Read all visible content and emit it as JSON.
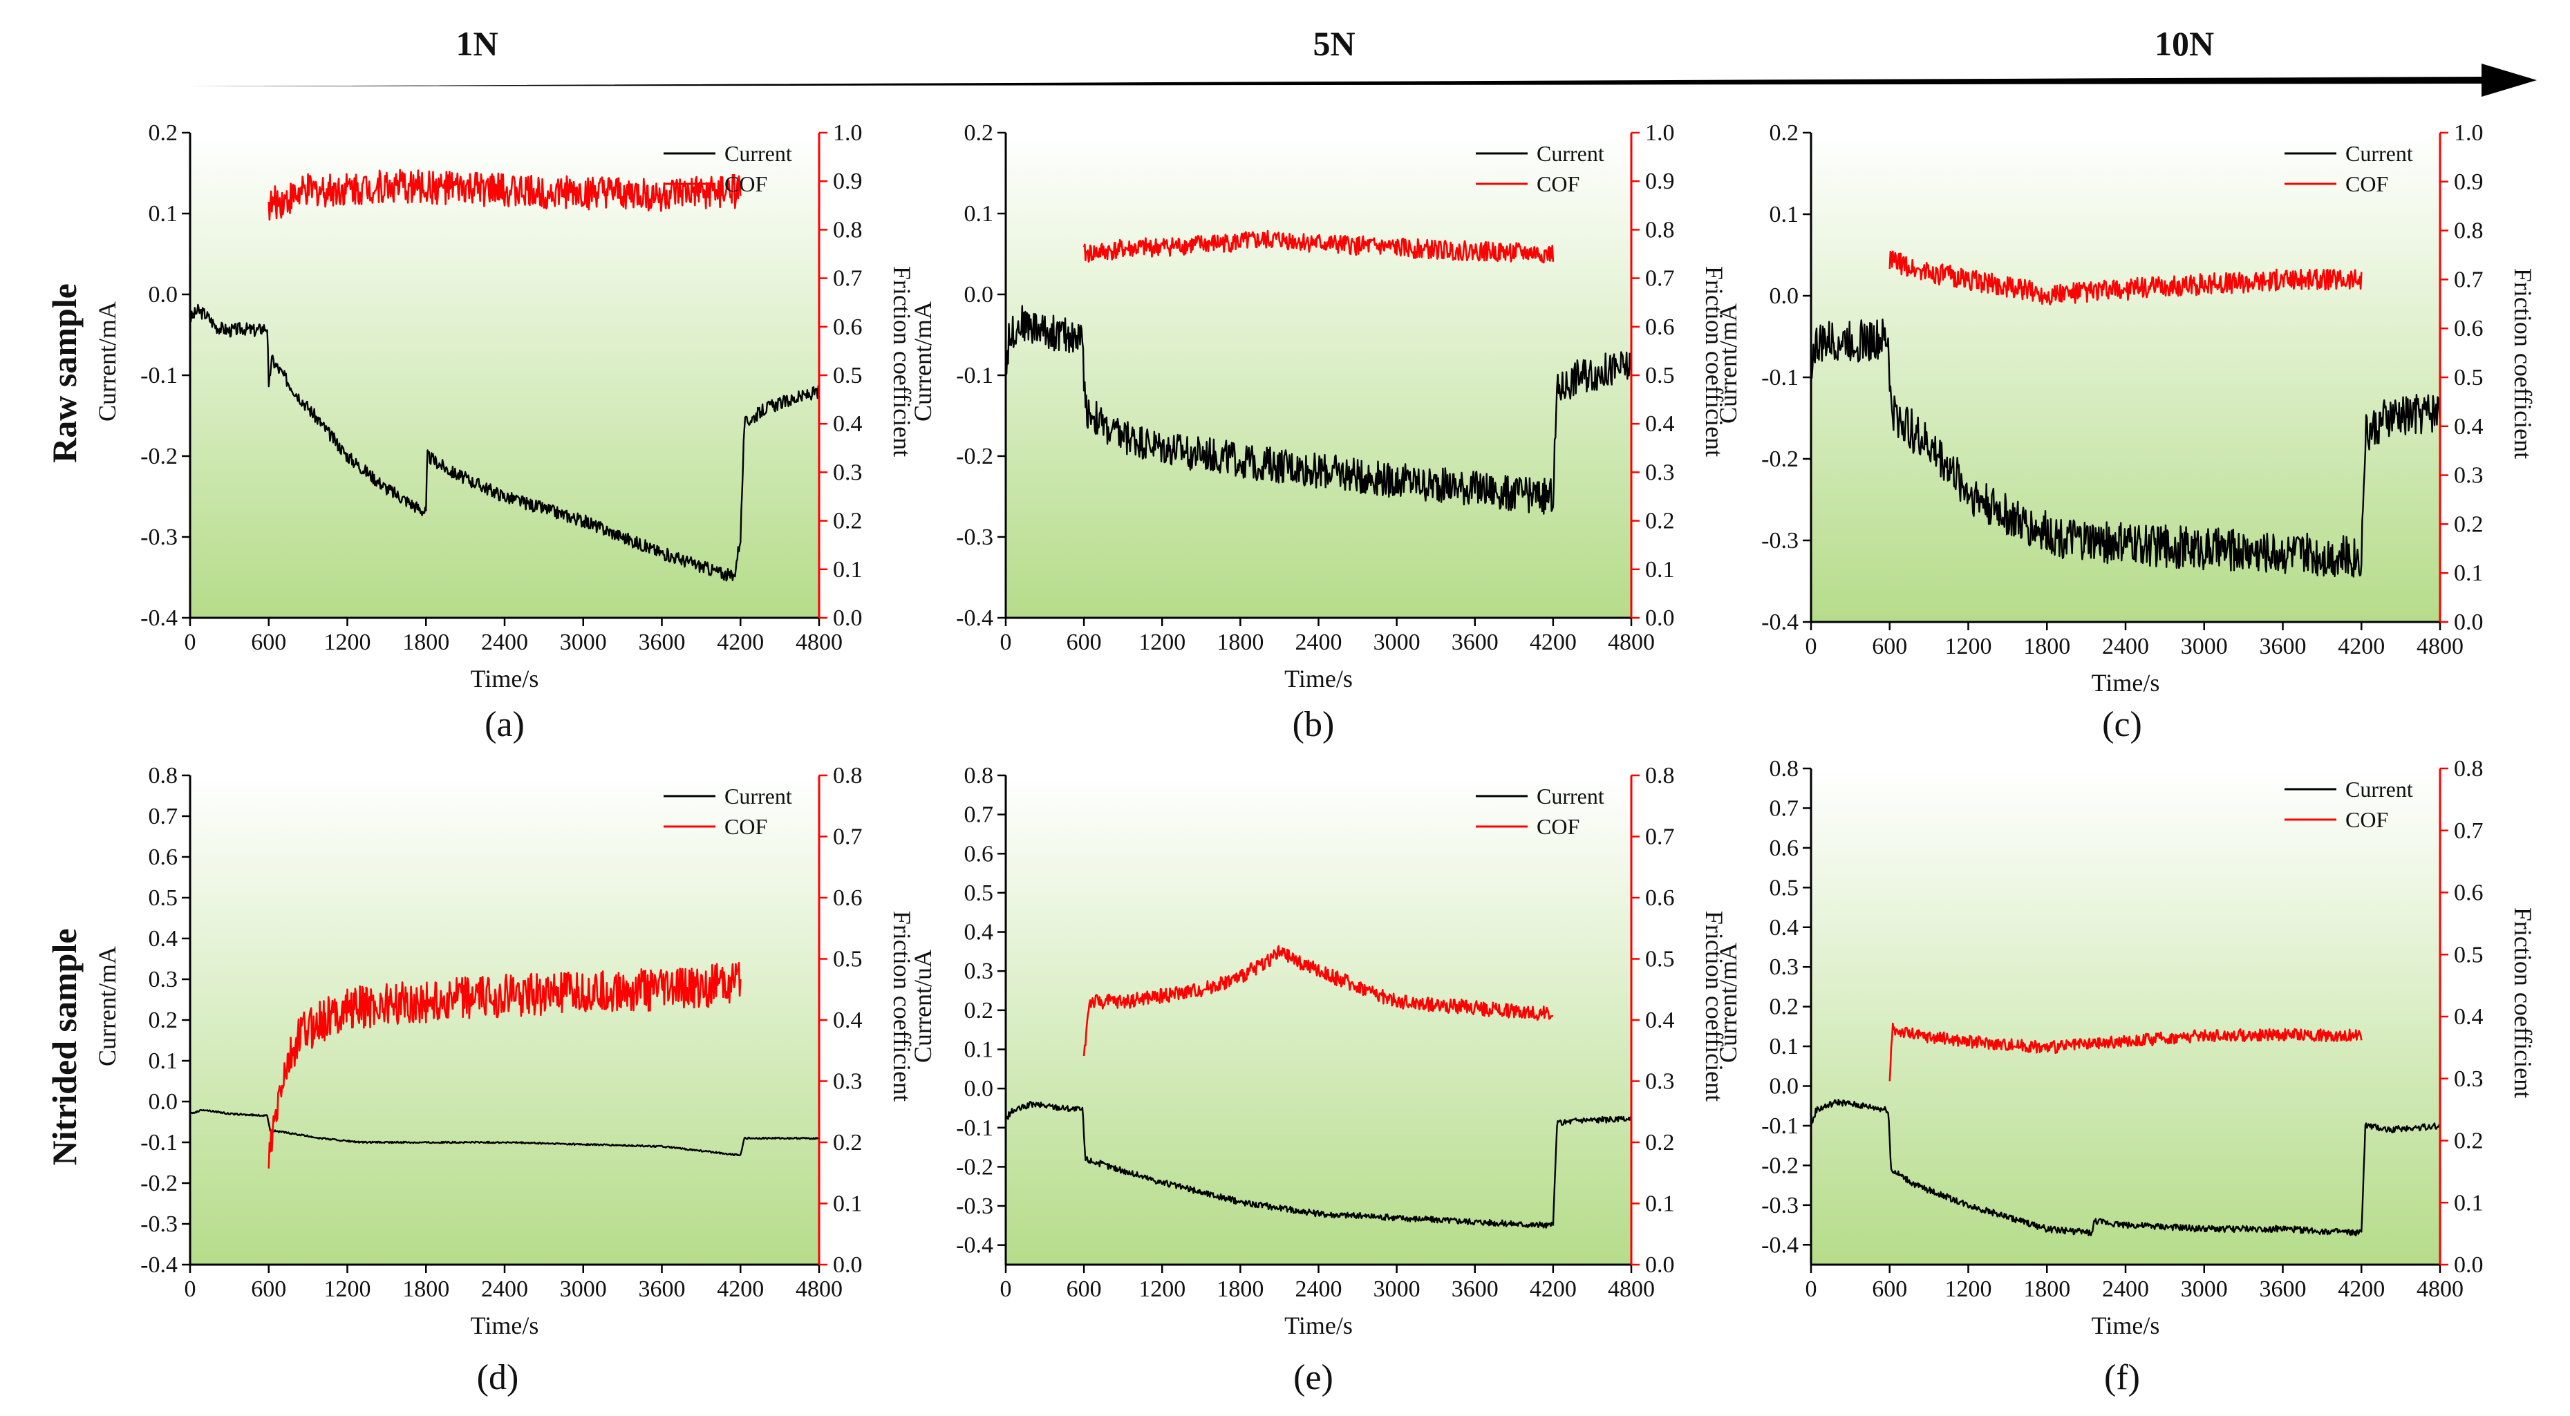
{
  "header": {
    "loads": [
      "1N",
      "5N",
      "10N"
    ]
  },
  "rows": [
    "Raw sample",
    "Nitrided sample"
  ],
  "colors": {
    "current": "#000000",
    "cof": "#ff0000",
    "bg_top": "#ffffff",
    "bg_bottom": "#b5dc8a",
    "right_axis": "#ff0000"
  },
  "chart_data": [
    {
      "id": "a",
      "caption": "(a)",
      "type": "line",
      "xlabel": "Time/s",
      "ylabel": "Current/mA",
      "y2label": "Friction coefficient",
      "xlim": [
        0,
        4800
      ],
      "xticks": [
        "0",
        "600",
        "1200",
        "1800",
        "2400",
        "3000",
        "3600",
        "4200",
        "4800"
      ],
      "ylim": [
        -0.4,
        0.2
      ],
      "yticks": [
        "-0.4",
        "-0.3",
        "-0.2",
        "-0.1",
        "0.0",
        "0.1",
        "0.2"
      ],
      "y2lim": [
        0.0,
        1.0
      ],
      "y2ticks": [
        "0.0",
        "0.1",
        "0.2",
        "0.3",
        "0.4",
        "0.5",
        "0.6",
        "0.7",
        "0.8",
        "0.9",
        "1.0"
      ],
      "legend": [
        "Current",
        "COF"
      ],
      "series": [
        {
          "name": "Current",
          "axis": "left",
          "noise": 0.008,
          "points": [
            [
              0,
              -0.03
            ],
            [
              60,
              -0.02
            ],
            [
              120,
              -0.025
            ],
            [
              200,
              -0.04
            ],
            [
              300,
              -0.045
            ],
            [
              400,
              -0.042
            ],
            [
              500,
              -0.045
            ],
            [
              590,
              -0.04
            ],
            [
              600,
              -0.12
            ],
            [
              620,
              -0.08
            ],
            [
              800,
              -0.12
            ],
            [
              1000,
              -0.16
            ],
            [
              1200,
              -0.2
            ],
            [
              1500,
              -0.24
            ],
            [
              1800,
              -0.27
            ],
            [
              1810,
              -0.2
            ],
            [
              2000,
              -0.22
            ],
            [
              2400,
              -0.25
            ],
            [
              3000,
              -0.28
            ],
            [
              3600,
              -0.32
            ],
            [
              4150,
              -0.35
            ],
            [
              4200,
              -0.3
            ],
            [
              4230,
              -0.16
            ],
            [
              4400,
              -0.14
            ],
            [
              4800,
              -0.12
            ]
          ]
        },
        {
          "name": "COF",
          "axis": "right",
          "noise": 0.035,
          "points": [
            [
              600,
              0.85
            ],
            [
              900,
              0.88
            ],
            [
              1500,
              0.89
            ],
            [
              2500,
              0.88
            ],
            [
              3600,
              0.87
            ],
            [
              4200,
              0.88
            ]
          ]
        }
      ]
    },
    {
      "id": "b",
      "caption": "(b)",
      "type": "line",
      "xlabel": "Time/s",
      "ylabel": "Current/mA",
      "y2label": "Friction coefficient",
      "xlim": [
        0,
        4800
      ],
      "xticks": [
        "0",
        "600",
        "1200",
        "1800",
        "2400",
        "3000",
        "3600",
        "4200",
        "4800"
      ],
      "ylim": [
        -0.4,
        0.2
      ],
      "yticks": [
        "-0.4",
        "-0.3",
        "-0.2",
        "-0.1",
        "0.0",
        "0.1",
        "0.2"
      ],
      "y2lim": [
        0.0,
        1.0
      ],
      "y2ticks": [
        "0.0",
        "0.1",
        "0.2",
        "0.3",
        "0.4",
        "0.5",
        "0.6",
        "0.7",
        "0.8",
        "0.9",
        "1.0"
      ],
      "legend": [
        "Current",
        "COF"
      ],
      "series": [
        {
          "name": "Current",
          "axis": "left",
          "noise": 0.022,
          "points": [
            [
              0,
              -0.09
            ],
            [
              30,
              -0.05
            ],
            [
              120,
              -0.035
            ],
            [
              300,
              -0.045
            ],
            [
              590,
              -0.055
            ],
            [
              610,
              -0.14
            ],
            [
              800,
              -0.17
            ],
            [
              1200,
              -0.19
            ],
            [
              2000,
              -0.21
            ],
            [
              3000,
              -0.23
            ],
            [
              4150,
              -0.25
            ],
            [
              4200,
              -0.25
            ],
            [
              4230,
              -0.12
            ],
            [
              4400,
              -0.1
            ],
            [
              4800,
              -0.09
            ]
          ]
        },
        {
          "name": "COF",
          "axis": "right",
          "noise": 0.02,
          "points": [
            [
              600,
              0.75
            ],
            [
              900,
              0.76
            ],
            [
              1500,
              0.77
            ],
            [
              2100,
              0.78
            ],
            [
              2500,
              0.77
            ],
            [
              3200,
              0.76
            ],
            [
              4200,
              0.75
            ]
          ]
        }
      ]
    },
    {
      "id": "c",
      "caption": "(c)",
      "type": "line",
      "xlabel": "Time/s",
      "ylabel": "Current/mA",
      "y2label": "Friction coefficient",
      "xlim": [
        0,
        4800
      ],
      "xticks": [
        "0",
        "600",
        "1200",
        "1800",
        "2400",
        "3000",
        "3600",
        "4200",
        "4800"
      ],
      "ylim": [
        -0.4,
        0.2
      ],
      "yticks": [
        "-0.4",
        "-0.3",
        "-0.2",
        "-0.1",
        "0.0",
        "0.1",
        "0.2"
      ],
      "y2lim": [
        0.0,
        1.0
      ],
      "y2ticks": [
        "0.0",
        "0.1",
        "0.2",
        "0.3",
        "0.4",
        "0.5",
        "0.6",
        "0.7",
        "0.8",
        "0.9",
        "1.0"
      ],
      "legend": [
        "Current",
        "COF"
      ],
      "series": [
        {
          "name": "Current",
          "axis": "left",
          "noise": 0.026,
          "points": [
            [
              0,
              -0.08
            ],
            [
              40,
              -0.06
            ],
            [
              200,
              -0.055
            ],
            [
              590,
              -0.055
            ],
            [
              610,
              -0.14
            ],
            [
              800,
              -0.17
            ],
            [
              1000,
              -0.2
            ],
            [
              1200,
              -0.24
            ],
            [
              1600,
              -0.28
            ],
            [
              2000,
              -0.3
            ],
            [
              3000,
              -0.31
            ],
            [
              4150,
              -0.32
            ],
            [
              4200,
              -0.32
            ],
            [
              4230,
              -0.17
            ],
            [
              4400,
              -0.15
            ],
            [
              4800,
              -0.14
            ]
          ]
        },
        {
          "name": "COF",
          "axis": "right",
          "noise": 0.022,
          "points": [
            [
              600,
              0.74
            ],
            [
              800,
              0.72
            ],
            [
              1200,
              0.7
            ],
            [
              1800,
              0.67
            ],
            [
              2400,
              0.68
            ],
            [
              3000,
              0.69
            ],
            [
              3600,
              0.7
            ],
            [
              4200,
              0.7
            ]
          ]
        }
      ]
    },
    {
      "id": "d",
      "caption": "(d)",
      "type": "line",
      "xlabel": "Time/s",
      "ylabel": "Current/mA",
      "y2label": "Friction coefficient",
      "xlim": [
        0,
        4800
      ],
      "xticks": [
        "0",
        "600",
        "1200",
        "1800",
        "2400",
        "3000",
        "3600",
        "4200",
        "4800"
      ],
      "ylim": [
        -0.4,
        0.8
      ],
      "yticks": [
        "-0.4",
        "-0.3",
        "-0.2",
        "-0.1",
        "0.0",
        "0.1",
        "0.2",
        "0.3",
        "0.4",
        "0.5",
        "0.6",
        "0.7",
        "0.8"
      ],
      "y2lim": [
        0.0,
        0.8
      ],
      "y2ticks": [
        "0.0",
        "0.1",
        "0.2",
        "0.3",
        "0.4",
        "0.5",
        "0.6",
        "0.7",
        "0.8"
      ],
      "legend": [
        "Current",
        "COF"
      ],
      "series": [
        {
          "name": "Current",
          "axis": "left",
          "noise": 0.002,
          "points": [
            [
              0,
              -0.03
            ],
            [
              100,
              -0.02
            ],
            [
              300,
              -0.03
            ],
            [
              590,
              -0.035
            ],
            [
              610,
              -0.07
            ],
            [
              1000,
              -0.09
            ],
            [
              1300,
              -0.1
            ],
            [
              2400,
              -0.1
            ],
            [
              3600,
              -0.11
            ],
            [
              4150,
              -0.13
            ],
            [
              4200,
              -0.13
            ],
            [
              4230,
              -0.09
            ],
            [
              4800,
              -0.09
            ]
          ]
        },
        {
          "name": "COF",
          "axis": "right",
          "noise": 0.035,
          "points": [
            [
              600,
              0.17
            ],
            [
              700,
              0.3
            ],
            [
              850,
              0.38
            ],
            [
              1200,
              0.42
            ],
            [
              2400,
              0.44
            ],
            [
              3600,
              0.45
            ],
            [
              4200,
              0.46
            ]
          ]
        }
      ]
    },
    {
      "id": "e",
      "caption": "(e)",
      "type": "line",
      "xlabel": "Time/s",
      "ylabel": "Current/uA",
      "y2label": "Friction coefficient",
      "xlim": [
        0,
        4800
      ],
      "xticks": [
        "0",
        "600",
        "1200",
        "1800",
        "2400",
        "3000",
        "3600",
        "4200",
        "4800"
      ],
      "ylim": [
        -0.45,
        0.8
      ],
      "yticks": [
        "-0.4",
        "-0.3",
        "-0.2",
        "-0.1",
        "0.0",
        "0.1",
        "0.2",
        "0.3",
        "0.4",
        "0.5",
        "0.6",
        "0.7",
        "0.8"
      ],
      "y2lim": [
        0.0,
        0.8
      ],
      "y2ticks": [
        "0.0",
        "0.1",
        "0.2",
        "0.3",
        "0.4",
        "0.5",
        "0.6",
        "0.7",
        "0.8"
      ],
      "legend": [
        "Current",
        "COF"
      ],
      "series": [
        {
          "name": "Current",
          "axis": "left",
          "noise": 0.008,
          "points": [
            [
              0,
              -0.08
            ],
            [
              40,
              -0.06
            ],
            [
              200,
              -0.04
            ],
            [
              590,
              -0.055
            ],
            [
              610,
              -0.18
            ],
            [
              800,
              -0.2
            ],
            [
              1200,
              -0.24
            ],
            [
              1800,
              -0.29
            ],
            [
              2400,
              -0.32
            ],
            [
              3000,
              -0.33
            ],
            [
              3600,
              -0.34
            ],
            [
              4150,
              -0.35
            ],
            [
              4200,
              -0.35
            ],
            [
              4230,
              -0.09
            ],
            [
              4400,
              -0.08
            ],
            [
              4800,
              -0.08
            ]
          ]
        },
        {
          "name": "COF",
          "axis": "right",
          "noise": 0.012,
          "points": [
            [
              600,
              0.34
            ],
            [
              640,
              0.43
            ],
            [
              900,
              0.43
            ],
            [
              1500,
              0.45
            ],
            [
              1800,
              0.47
            ],
            [
              2100,
              0.51
            ],
            [
              2400,
              0.48
            ],
            [
              3000,
              0.43
            ],
            [
              3600,
              0.42
            ],
            [
              4200,
              0.41
            ]
          ]
        }
      ]
    },
    {
      "id": "f",
      "caption": "(f)",
      "type": "line",
      "xlabel": "Time/s",
      "ylabel": "Current/mA",
      "y2label": "Friction coefficient",
      "xlim": [
        0,
        4800
      ],
      "xticks": [
        "0",
        "600",
        "1200",
        "1800",
        "2400",
        "3000",
        "3600",
        "4200",
        "4800"
      ],
      "ylim": [
        -0.45,
        0.8
      ],
      "yticks": [
        "-0.4",
        "-0.3",
        "-0.2",
        "-0.1",
        "0.0",
        "0.1",
        "0.2",
        "0.3",
        "0.4",
        "0.5",
        "0.6",
        "0.7",
        "0.8"
      ],
      "y2lim": [
        0.0,
        0.8
      ],
      "y2ticks": [
        "0.0",
        "0.1",
        "0.2",
        "0.3",
        "0.4",
        "0.5",
        "0.6",
        "0.7",
        "0.8"
      ],
      "legend": [
        "Current",
        "COF"
      ],
      "series": [
        {
          "name": "Current",
          "axis": "left",
          "noise": 0.008,
          "points": [
            [
              0,
              -0.1
            ],
            [
              40,
              -0.06
            ],
            [
              200,
              -0.04
            ],
            [
              590,
              -0.06
            ],
            [
              610,
              -0.21
            ],
            [
              800,
              -0.25
            ],
            [
              1200,
              -0.3
            ],
            [
              1800,
              -0.36
            ],
            [
              2150,
              -0.37
            ],
            [
              2160,
              -0.34
            ],
            [
              2400,
              -0.35
            ],
            [
              3000,
              -0.36
            ],
            [
              3600,
              -0.36
            ],
            [
              4150,
              -0.37
            ],
            [
              4200,
              -0.37
            ],
            [
              4230,
              -0.1
            ],
            [
              4400,
              -0.11
            ],
            [
              4800,
              -0.1
            ]
          ]
        },
        {
          "name": "COF",
          "axis": "right",
          "noise": 0.01,
          "points": [
            [
              600,
              0.29
            ],
            [
              620,
              0.38
            ],
            [
              800,
              0.37
            ],
            [
              1200,
              0.36
            ],
            [
              1800,
              0.35
            ],
            [
              2400,
              0.36
            ],
            [
              3000,
              0.37
            ],
            [
              3600,
              0.37
            ],
            [
              4200,
              0.37
            ]
          ]
        }
      ]
    }
  ]
}
